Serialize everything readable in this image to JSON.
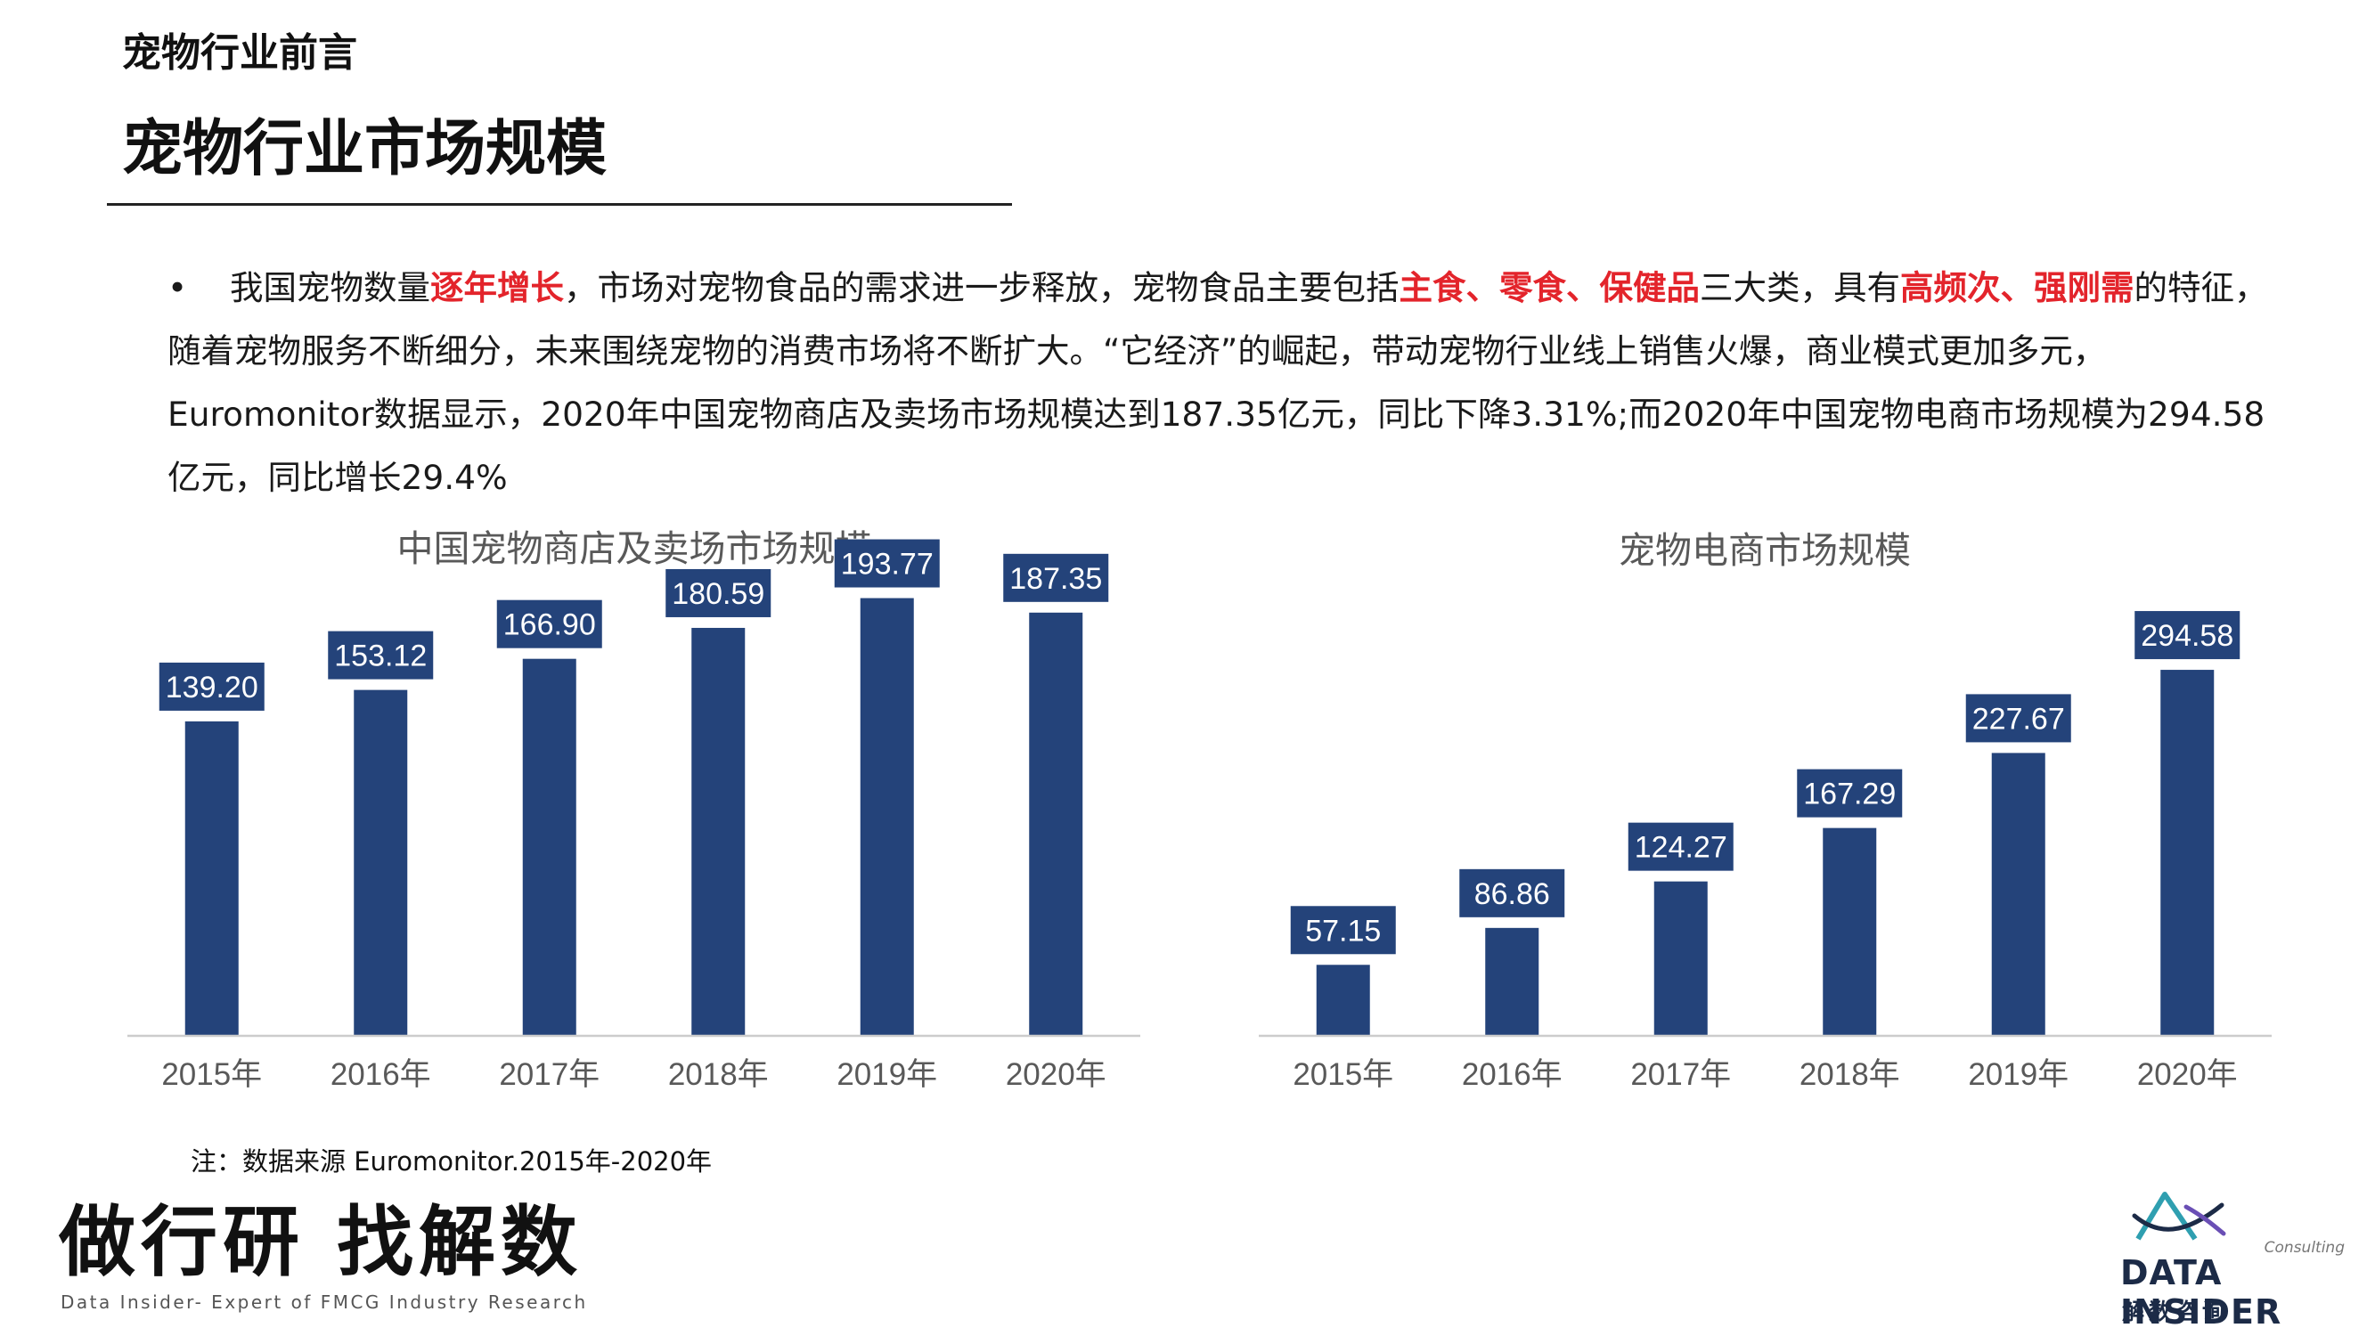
{
  "header": {
    "section_label": "宠物行业前言",
    "title": "宠物行业市场规模"
  },
  "intro": {
    "bullet": "•",
    "t1": "我国宠物数量",
    "h1": "逐年增长",
    "t2": "，市场对宠物食品的需求进一步释放，宠物食品主要包括",
    "h2": "主食、零食、保健品",
    "t3": "三大类，具有",
    "h3": "高频次、强刚需",
    "t4": "的特征，随着宠物服务不断细分，未来围绕宠物的消费市场将不断扩大。“它经济”的崛起，带动宠物行业线上销售火爆，商业模式更加多元，Euromonitor数据显示，2020年中国宠物商店及卖场市场规模达到187.35亿元，同比下降3.31%;而2020年中国宠物电商市场规模为294.58亿元，同比增长29.4%"
  },
  "chart_data": [
    {
      "type": "bar",
      "title": "中国宠物商店及卖场市场规模",
      "categories": [
        "2015年",
        "2016年",
        "2017年",
        "2018年",
        "2019年",
        "2020年"
      ],
      "values": [
        139.2,
        153.12,
        166.9,
        180.59,
        193.77,
        187.35
      ],
      "value_labels": [
        "139.20",
        "153.12",
        "166.90",
        "180.59",
        "193.77",
        "187.35"
      ],
      "xlabel": "",
      "ylabel": "",
      "ylim": [
        0,
        220
      ],
      "grid": false,
      "legend": "none",
      "bar_color": "#24437a",
      "label_bg": "#24437a",
      "label_color": "#ffffff"
    },
    {
      "type": "bar",
      "title": "宠物电商市场规模",
      "categories": [
        "2015年",
        "2016年",
        "2017年",
        "2018年",
        "2019年",
        "2020年"
      ],
      "values": [
        57.15,
        86.86,
        124.27,
        167.29,
        227.67,
        294.58
      ],
      "value_labels": [
        "57.15",
        "86.86",
        "124.27",
        "167.29",
        "227.67",
        "294.58"
      ],
      "xlabel": "",
      "ylabel": "",
      "ylim": [
        0,
        400
      ],
      "grid": false,
      "legend": "none",
      "bar_color": "#24437a",
      "label_bg": "#24437a",
      "label_color": "#ffffff"
    }
  ],
  "footer": {
    "note": "注：数据来源 Euromonitor.2015年-2020年",
    "slogan": "做行研 找解数",
    "slogan_sub": "Data Insider- Expert of FMCG Industry Research",
    "logo_consulting": "Consulting",
    "logo_name": "DATA INSIDER",
    "logo_cn": "解数咨询",
    "logo_icon": "triangle-wave-logo-icon"
  },
  "colors": {
    "highlight": "#e3242b",
    "bar": "#24437a",
    "axis": "#cccccc",
    "tick_text": "#595959",
    "chart_title": "#595959"
  }
}
